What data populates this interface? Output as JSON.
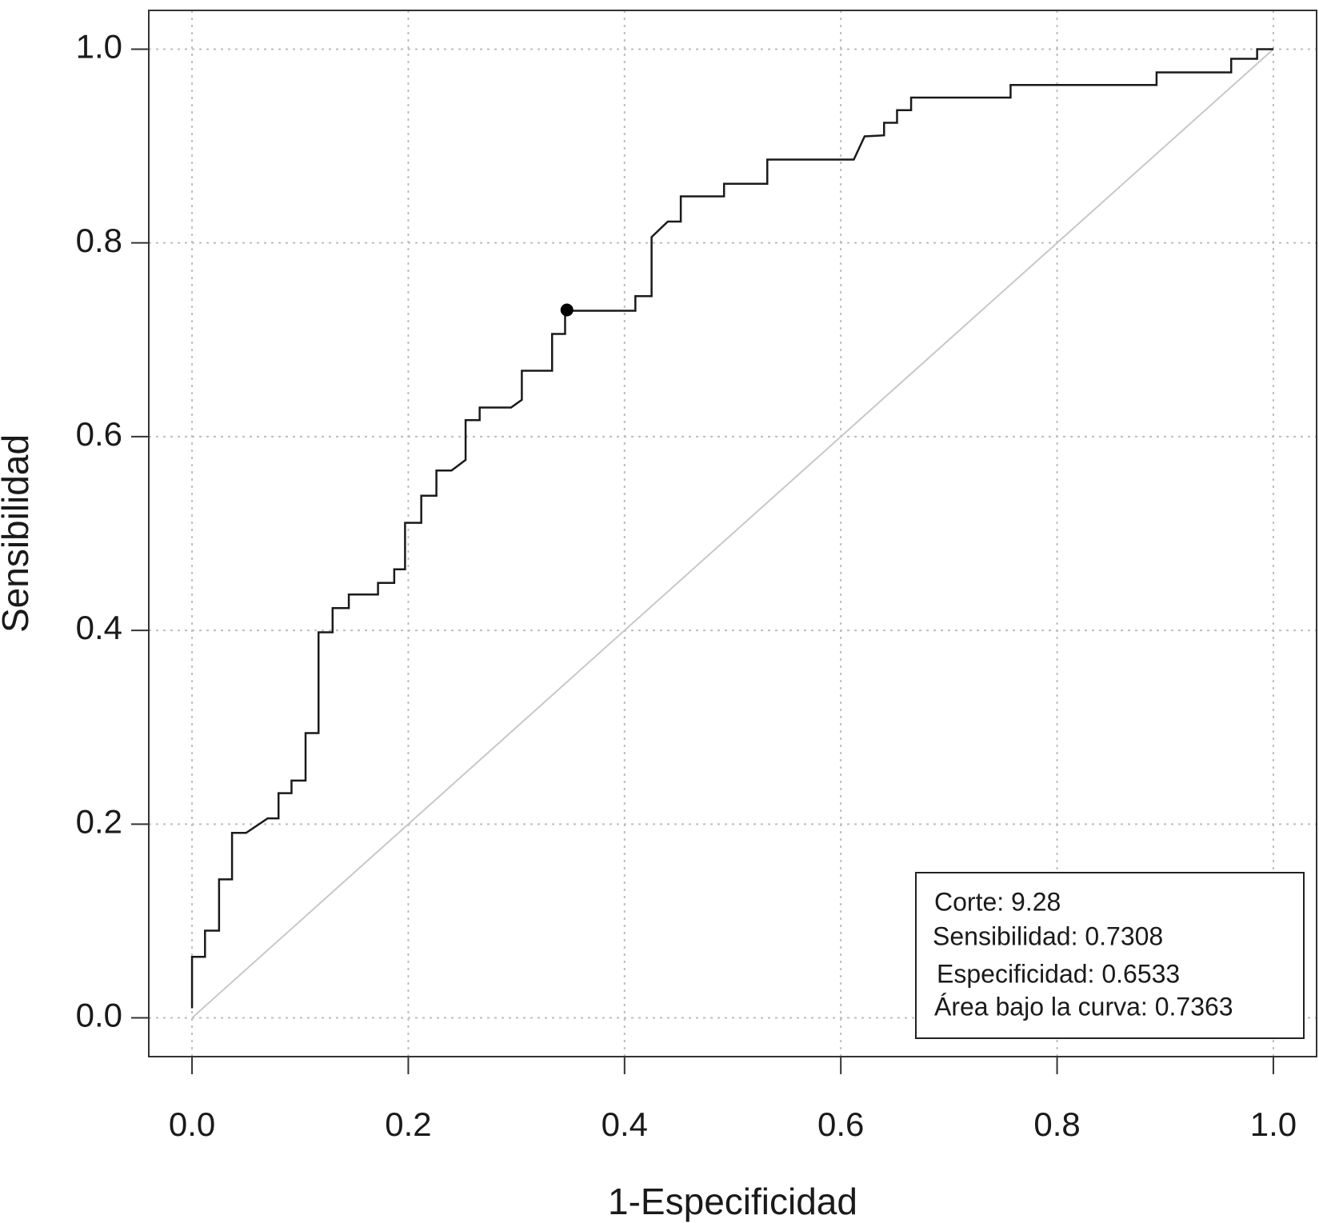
{
  "chart_data": {
    "type": "line",
    "xlabel": "1-Especificidad",
    "ylabel": "Sensibilidad",
    "xlim": [
      -0.04,
      1.04
    ],
    "ylim": [
      -0.04,
      1.04
    ],
    "xticks": [
      {
        "value": 0,
        "label": "0.0"
      },
      0.2,
      0.4,
      0.6,
      0.8,
      {
        "value": 1,
        "label": "1.0"
      }
    ],
    "yticks": [
      {
        "value": 0,
        "label": "0.0"
      },
      0.2,
      0.4,
      0.6,
      0.8,
      {
        "value": 1,
        "label": "1.0"
      }
    ],
    "grid": true,
    "series": [
      {
        "color": "#1a1a1a",
        "x": [
          0,
          0,
          0.012,
          0.012,
          0.025,
          0.025,
          0.037,
          0.037,
          0.05,
          0.07,
          0.08,
          0.08,
          0.092,
          0.092,
          0.105,
          0.105,
          0.117,
          0.117,
          0.13,
          0.13,
          0.145,
          0.145,
          0.172,
          0.172,
          0.187,
          0.187,
          0.197,
          0.197,
          0.212,
          0.212,
          0.226,
          0.226,
          0.24,
          0.253,
          0.253,
          0.266,
          0.266,
          0.295,
          0.305,
          0.305,
          0.333,
          0.333,
          0.345,
          0.345,
          0.41,
          0.41,
          0.425,
          0.425,
          0.44,
          0.452,
          0.452,
          0.492,
          0.492,
          0.532,
          0.532,
          0.612,
          0.622,
          0.64,
          0.64,
          0.652,
          0.652,
          0.665,
          0.665,
          0.757,
          0.757,
          0.892,
          0.892,
          0.961,
          0.961,
          0.985,
          0.985,
          1.0
        ],
        "values": [
          0.01,
          0.063,
          0.063,
          0.09,
          0.09,
          0.143,
          0.143,
          0.191,
          0.191,
          0.206,
          0.206,
          0.232,
          0.232,
          0.245,
          0.245,
          0.294,
          0.294,
          0.398,
          0.398,
          0.423,
          0.423,
          0.437,
          0.437,
          0.449,
          0.449,
          0.463,
          0.463,
          0.511,
          0.511,
          0.539,
          0.539,
          0.565,
          0.565,
          0.576,
          0.617,
          0.617,
          0.63,
          0.63,
          0.638,
          0.668,
          0.668,
          0.706,
          0.706,
          0.73,
          0.73,
          0.745,
          0.745,
          0.806,
          0.822,
          0.822,
          0.848,
          0.848,
          0.861,
          0.861,
          0.886,
          0.886,
          0.91,
          0.911,
          0.924,
          0.924,
          0.937,
          0.937,
          0.95,
          0.95,
          0.963,
          0.963,
          0.976,
          0.976,
          0.99,
          0.99,
          1.0,
          1.0
        ]
      },
      {
        "color": "#c8c8c8",
        "x": [
          0,
          1
        ],
        "values": [
          0,
          1
        ]
      },
      {
        "color": "#000000",
        "marker": true,
        "x": [
          0.3467
        ],
        "values": [
          0.7308
        ]
      }
    ],
    "annotations": [
      "Corte: 9.28",
      "Sensibilidad: 0.7308",
      "Especificidad: 0.6533",
      "Área bajo la curva: 0.7363"
    ]
  }
}
